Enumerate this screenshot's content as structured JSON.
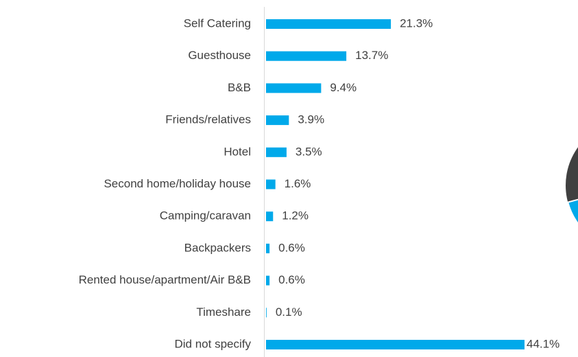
{
  "chart_data": {
    "type": "bar",
    "orientation": "horizontal",
    "categories": [
      "Self Catering",
      "Guesthouse",
      "B&B",
      "Friends/relatives",
      "Hotel",
      "Second home/holiday house",
      "Camping/caravan",
      "Backpackers",
      "Rented house/apartment/Air B&B",
      "Timeshare",
      "Did not specify"
    ],
    "values": [
      21.3,
      13.7,
      9.4,
      3.9,
      3.5,
      1.6,
      1.2,
      0.6,
      0.6,
      0.1,
      44.1
    ],
    "value_labels": [
      "21.3%",
      "13.7%",
      "9.4%",
      "3.9%",
      "3.5%",
      "1.6%",
      "1.2%",
      "0.6%",
      "0.6%",
      "0.1%",
      "44.1%"
    ],
    "color": "#00a9ea"
  }
}
